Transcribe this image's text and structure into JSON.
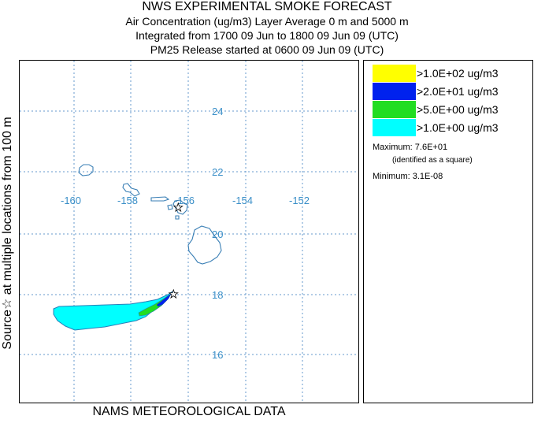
{
  "title": "NWS EXPERIMENTAL SMOKE FORECAST",
  "subtitle_lines": [
    "Air Concentration (ug/m3) Layer Average    0 m and  5000 m",
    "Integrated from 1700 09 Jun to 1800 09 Jun 09 (UTC)",
    "PM25 Release started at 0600 09 Jun 09 (UTC)"
  ],
  "side_label": "Source☆ at multiple locations   from   100 m",
  "bottom_label": "NAMS METEOROLOGICAL DATA",
  "map": {
    "longitude_labels": [
      "-160",
      "-158",
      "-156",
      "-154",
      "-152"
    ],
    "latitude_labels": [
      "24",
      "22",
      "20",
      "18",
      "16"
    ],
    "grid_color": "#6699cc",
    "label_color": "#3a8fc8",
    "coast_color": "#3a7fb5",
    "source_markers": [
      "star",
      "star"
    ]
  },
  "legend": {
    "items": [
      {
        "label": ">1.0E+02 ug/m3",
        "color": "#ffff00"
      },
      {
        "label": ">2.0E+01 ug/m3",
        "color": "#0022ee"
      },
      {
        "label": ">5.0E+00 ug/m3",
        "color": "#22dd22"
      },
      {
        "label": ">1.0E+00 ug/m3",
        "color": "#00ffff"
      }
    ],
    "maximum": "Maximum: 7.6E+01",
    "maximum_note": "(identified as a square)",
    "minimum": "Minimum: 3.1E-08"
  }
}
